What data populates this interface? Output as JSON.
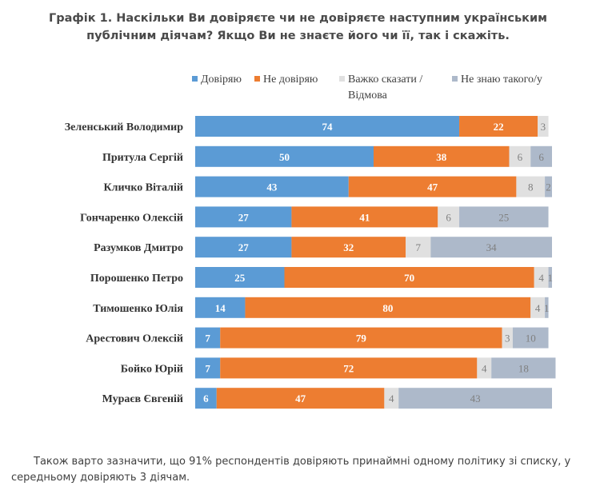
{
  "title": "Графік 1. Наскільки Ви довіряєте чи не довіряєте наступним українським публічним діячам? Якщо Ви не знаєте його чи її, так і скажіть.",
  "footer_text": "Також варто зазначити, що 91% респондентів довіряють принаймні одному політику зі списку, у середньому довіряють 3 діячам.",
  "chart_data": {
    "type": "bar",
    "orientation": "horizontal",
    "stacked": true,
    "xlim": [
      0,
      100
    ],
    "grid": false,
    "legend_position": "top",
    "categories": [
      "Зеленський Володимир",
      "Притула Сергій",
      "Кличко Віталій",
      "Гончаренко Олексій",
      "Разумков Дмитро",
      "Порошенко Петро",
      "Тимошенко Юлія",
      "Арестович Олексій",
      "Бойко Юрій",
      "Мураєв Євгеній"
    ],
    "series": [
      {
        "name": "Довіряю",
        "color": "#5b9bd5",
        "label_color": "#ffffff",
        "label_weight": "bold",
        "values": [
          74,
          50,
          43,
          27,
          27,
          25,
          14,
          7,
          7,
          6
        ]
      },
      {
        "name": "Не довіряю",
        "color": "#ed7d31",
        "label_color": "#ffffff",
        "label_weight": "bold",
        "values": [
          22,
          38,
          47,
          41,
          32,
          70,
          80,
          79,
          72,
          47
        ]
      },
      {
        "name": "Важко сказати / Відмова",
        "color": "#e0e0e0",
        "label_color": "#7f7f7f",
        "label_weight": "normal",
        "values": [
          3,
          6,
          8,
          6,
          7,
          4,
          4,
          3,
          4,
          4
        ]
      },
      {
        "name": "Не знаю такого/у",
        "color": "#adb9ca",
        "label_color": "#7f7f7f",
        "label_weight": "normal",
        "values": [
          0,
          6,
          2,
          25,
          34,
          1,
          1,
          10,
          18,
          43
        ]
      }
    ],
    "hidden_labels": [
      [
        3,
        0
      ]
    ],
    "legend_lines": [
      [
        "Довіряю"
      ],
      [
        "Не довіряю"
      ],
      [
        "Важко сказати /",
        "Відмова"
      ],
      [
        "Не знаю такого/у"
      ]
    ]
  }
}
